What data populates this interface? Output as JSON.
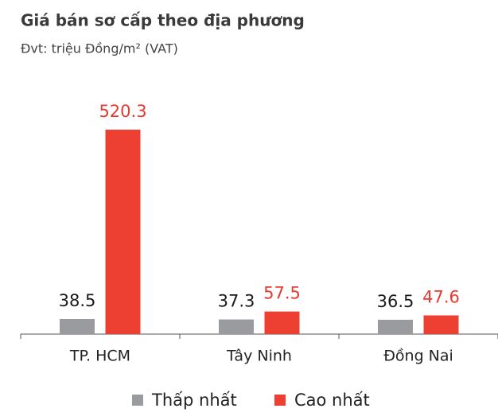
{
  "chart_data": {
    "type": "bar",
    "title": "Giá bán sơ cấp theo địa phương",
    "subtitle": "Đvt: triệu Đồng/m² (VAT)",
    "categories": [
      "TP. HCM",
      "Tây Ninh",
      "Đồng Nai"
    ],
    "series": [
      {
        "name": "Thấp nhất",
        "color": "#9a9b9f",
        "label_color": "#1a1a1a",
        "values": [
          38.5,
          37.3,
          36.5
        ]
      },
      {
        "name": "Cao nhất",
        "color": "#ee3f33",
        "label_color": "#e8392f",
        "values": [
          520.3,
          57.5,
          47.6
        ]
      }
    ]
  }
}
